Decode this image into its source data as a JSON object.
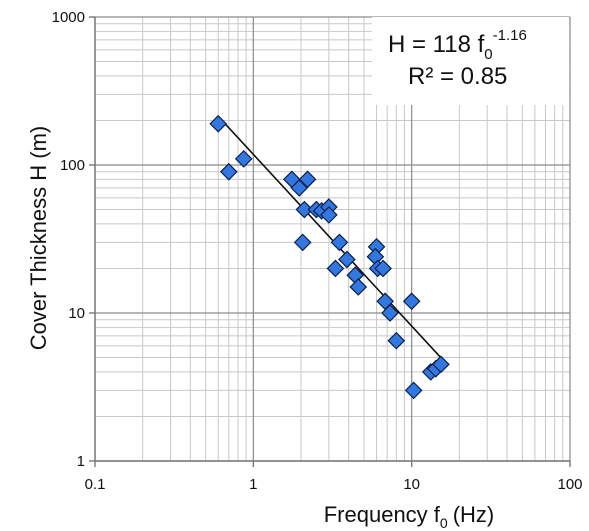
{
  "chart_data": {
    "type": "scatter",
    "xlabel": "Frequency f",
    "xlabel_sub": "0",
    "xlabel_unit": "(Hz)",
    "ylabel": "Cover Thickness H (m)",
    "x_scale": "log",
    "y_scale": "log",
    "xlim": [
      0.1,
      100
    ],
    "ylim": [
      1,
      1000
    ],
    "x_ticks": [
      0.1,
      1,
      10,
      100
    ],
    "x_tick_labels": [
      "0.1",
      "1",
      "10",
      "100"
    ],
    "y_ticks": [
      1,
      10,
      100,
      1000
    ],
    "y_tick_labels": [
      "1",
      "10",
      "100",
      "1000"
    ],
    "grid": true,
    "equation": {
      "lhs": "H = 118 f",
      "sub": "0",
      "sup": "-1.16",
      "r2": "R² = 0.85"
    },
    "trendline": {
      "coef": 118,
      "exp": -1.16,
      "x_range": [
        0.6,
        15.5
      ]
    },
    "marker_color": "#3377e0",
    "marker_stroke": "#0a1f4a",
    "points": [
      {
        "x": 0.6,
        "y": 190
      },
      {
        "x": 0.7,
        "y": 90
      },
      {
        "x": 0.87,
        "y": 110
      },
      {
        "x": 1.75,
        "y": 80
      },
      {
        "x": 1.95,
        "y": 70
      },
      {
        "x": 2.2,
        "y": 80
      },
      {
        "x": 2.1,
        "y": 50
      },
      {
        "x": 2.05,
        "y": 30
      },
      {
        "x": 2.5,
        "y": 50
      },
      {
        "x": 2.7,
        "y": 49
      },
      {
        "x": 3.0,
        "y": 52
      },
      {
        "x": 3.0,
        "y": 46
      },
      {
        "x": 3.5,
        "y": 30
      },
      {
        "x": 3.3,
        "y": 20
      },
      {
        "x": 3.9,
        "y": 23
      },
      {
        "x": 4.4,
        "y": 18
      },
      {
        "x": 4.6,
        "y": 15
      },
      {
        "x": 6.0,
        "y": 28
      },
      {
        "x": 5.9,
        "y": 24
      },
      {
        "x": 6.1,
        "y": 20
      },
      {
        "x": 6.6,
        "y": 20
      },
      {
        "x": 6.8,
        "y": 12
      },
      {
        "x": 7.3,
        "y": 10
      },
      {
        "x": 8.0,
        "y": 6.5
      },
      {
        "x": 10.0,
        "y": 12
      },
      {
        "x": 10.3,
        "y": 3
      },
      {
        "x": 13.2,
        "y": 4
      },
      {
        "x": 14.2,
        "y": 4.2
      },
      {
        "x": 15.3,
        "y": 4.5
      }
    ]
  }
}
